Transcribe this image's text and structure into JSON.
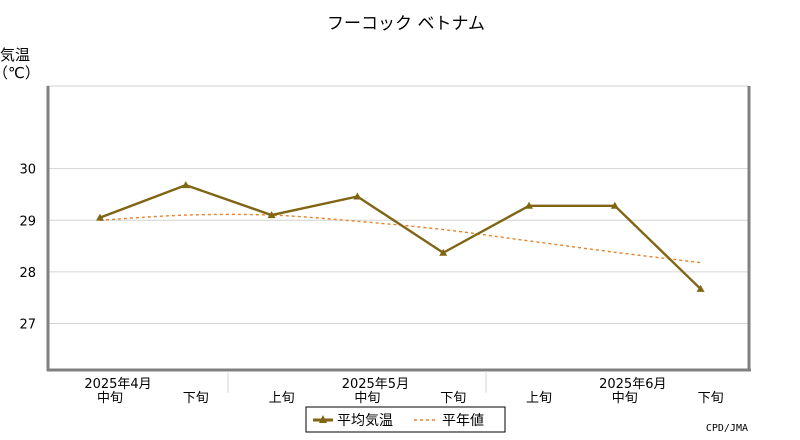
{
  "chart_data": {
    "type": "line",
    "title": "フーコック ベトナム",
    "ylabel": "気温",
    "yunit": "（℃）",
    "ylim": [
      26.1,
      31.6
    ],
    "yticks": [
      27,
      28,
      29,
      30
    ],
    "x": [
      "中旬",
      "下旬",
      "上旬",
      "中旬",
      "下旬",
      "上旬",
      "中旬",
      "下旬"
    ],
    "month_labels": [
      {
        "label": "2025年4月",
        "at": 0
      },
      {
        "label": "2025年5月",
        "at": 3
      },
      {
        "label": "2025年6月",
        "at": 6
      }
    ],
    "series": [
      {
        "name": "平均気温",
        "values": [
          29.05,
          29.68,
          29.1,
          29.46,
          28.37,
          29.28,
          29.28,
          27.67
        ],
        "color": "#7f6514",
        "style": "solid",
        "marker": "triangle"
      },
      {
        "name": "平年値",
        "values": [
          29.0,
          29.1,
          29.1,
          28.98,
          28.82,
          28.6,
          28.38,
          28.18
        ],
        "color": "#e8822a",
        "style": "dashed"
      }
    ],
    "grid": true,
    "legend": "bottom-center"
  },
  "credit": "CPD/JMA"
}
